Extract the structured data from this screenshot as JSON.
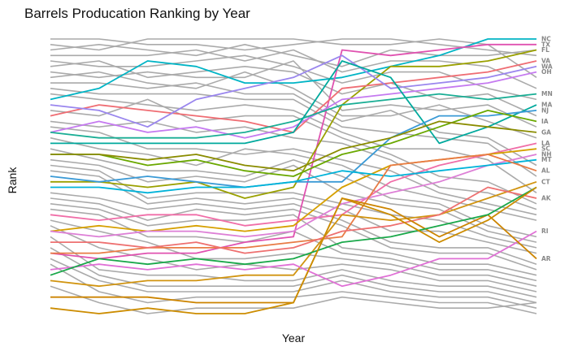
{
  "chart_data": {
    "type": "line",
    "title": "Barrels Producation Ranking by Year",
    "xlabel": "Year",
    "ylabel": "Rank",
    "x": [
      1,
      2,
      3,
      4,
      5,
      6,
      7,
      8,
      9,
      10,
      11
    ],
    "ylim": [
      1,
      51
    ],
    "y_reversed": true,
    "grid": false,
    "legend": "none",
    "background_series_color": "#aaaaaa",
    "highlighted": [
      {
        "label": "NC",
        "color": "#00b4c5",
        "ranks": [
          12,
          10,
          5,
          6,
          9,
          9,
          8,
          6,
          4,
          1,
          1
        ]
      },
      {
        "label": "TX",
        "color": "#e052b0",
        "ranks": [
          40,
          41,
          40,
          40,
          38,
          37,
          3,
          4,
          3,
          2,
          2
        ]
      },
      {
        "label": "FL",
        "color": "#9aa000",
        "ranks": [
          27,
          27,
          28,
          27,
          30,
          28,
          13,
          6,
          6,
          5,
          3
        ]
      },
      {
        "label": "VA",
        "color": "#ef6d73",
        "ranks": [
          15,
          13,
          14,
          15,
          16,
          18,
          10,
          9,
          8,
          7,
          5
        ]
      },
      {
        "label": "WA",
        "color": "#9a86ee",
        "ranks": [
          13,
          14,
          17,
          12,
          10,
          8,
          4,
          10,
          9,
          8,
          6
        ]
      },
      {
        "label": "OH",
        "color": "#c57af0",
        "ranks": [
          18,
          16,
          18,
          17,
          19,
          17,
          12,
          11,
          10,
          9,
          7
        ]
      },
      {
        "label": "MN",
        "color": "#1aae95",
        "ranks": [
          18,
          19,
          19,
          19,
          18,
          16,
          13,
          12,
          11,
          12,
          11
        ]
      },
      {
        "label": "MA",
        "color": "#00a99d",
        "ranks": [
          20,
          20,
          20,
          20,
          20,
          18,
          5,
          8,
          20,
          17,
          13
        ]
      },
      {
        "label": "NJ",
        "color": "#3a9ad6",
        "ranks": [
          26,
          27,
          26,
          27,
          28,
          27,
          27,
          19,
          15,
          15,
          14
        ]
      },
      {
        "label": "IA",
        "color": "#6aa800",
        "ranks": [
          22,
          22,
          24,
          23,
          25,
          26,
          22,
          20,
          17,
          14,
          16
        ]
      },
      {
        "label": "GA",
        "color": "#8a8c00",
        "ranks": [
          22,
          22,
          23,
          22,
          24,
          25,
          21,
          19,
          16,
          17,
          18
        ]
      },
      {
        "label": "LA",
        "color": "#f06ea8",
        "ranks": [
          33,
          34,
          33,
          33,
          35,
          34,
          33,
          27,
          24,
          22,
          20
        ]
      },
      {
        "label": "SC",
        "color": "#d6a000",
        "ranks": [
          36,
          35,
          36,
          35,
          36,
          35,
          28,
          24,
          23,
          22,
          21
        ]
      },
      {
        "label": "NH",
        "color": "#dd7fd6",
        "ranks": [
          36,
          37,
          36,
          36,
          37,
          36,
          31,
          29,
          27,
          24,
          22
        ]
      },
      {
        "label": "MT",
        "color": "#00b3d9",
        "ranks": [
          28,
          28,
          29,
          28,
          28,
          27,
          25,
          26,
          25,
          24,
          23
        ]
      },
      {
        "label": "AL",
        "color": "#e87b45",
        "ranks": [
          40,
          40,
          39,
          39,
          39,
          38,
          37,
          24,
          23,
          22,
          25
        ]
      },
      {
        "label": "CT",
        "color": "#d19410",
        "ranks": [
          45,
          46,
          45,
          45,
          44,
          44,
          33,
          34,
          33,
          30,
          27
        ]
      },
      {
        "label": "AK",
        "color": "#ee7070",
        "ranks": [
          38,
          38,
          39,
          38,
          40,
          39,
          36,
          35,
          33,
          28,
          30
        ]
      },
      {
        "label": "RI",
        "color": "#e070d6",
        "ranks": [
          43,
          42,
          43,
          42,
          43,
          42,
          46,
          44,
          41,
          41,
          36
        ]
      },
      {
        "label": "AR",
        "color": "#cc8400",
        "ranks": [
          48,
          48,
          48,
          49,
          49,
          49,
          30,
          32,
          37,
          33,
          41
        ]
      },
      {
        "label": "",
        "color": "#1aa84a",
        "ranks": [
          44,
          41,
          42,
          41,
          42,
          41,
          38,
          37,
          35,
          33,
          28
        ]
      },
      {
        "label": "",
        "color": "#cc8c00",
        "ranks": [
          50,
          51,
          50,
          51,
          51,
          49,
          30,
          33,
          38,
          34,
          28
        ]
      }
    ],
    "background": [
      [
        1,
        1,
        2,
        2,
        3,
        2,
        1,
        1,
        2,
        3,
        4
      ],
      [
        2,
        3,
        1,
        1,
        1,
        1,
        2,
        2,
        1,
        2,
        8
      ],
      [
        3,
        2,
        3,
        4,
        2,
        4,
        6,
        3,
        4,
        4,
        3
      ],
      [
        4,
        4,
        4,
        3,
        5,
        3,
        7,
        5,
        5,
        6,
        10
      ],
      [
        5,
        6,
        6,
        5,
        4,
        6,
        9,
        7,
        7,
        10,
        12
      ],
      [
        6,
        5,
        8,
        7,
        6,
        7,
        11,
        9,
        12,
        11,
        15
      ],
      [
        7,
        8,
        7,
        8,
        8,
        5,
        14,
        13,
        14,
        13,
        17
      ],
      [
        8,
        7,
        9,
        10,
        7,
        10,
        15,
        15,
        13,
        16,
        19
      ],
      [
        9,
        9,
        10,
        9,
        11,
        11,
        16,
        14,
        18,
        19,
        24
      ],
      [
        10,
        11,
        11,
        11,
        12,
        12,
        17,
        18,
        19,
        20,
        26
      ],
      [
        11,
        12,
        13,
        14,
        13,
        14,
        18,
        21,
        21,
        23,
        29
      ],
      [
        14,
        15,
        12,
        16,
        15,
        15,
        19,
        22,
        26,
        27,
        31
      ],
      [
        16,
        17,
        16,
        18,
        17,
        19,
        20,
        23,
        28,
        29,
        32
      ],
      [
        17,
        18,
        21,
        21,
        22,
        21,
        23,
        25,
        29,
        31,
        33
      ],
      [
        19,
        21,
        22,
        24,
        21,
        22,
        24,
        28,
        30,
        32,
        34
      ],
      [
        21,
        23,
        25,
        25,
        26,
        23,
        26,
        30,
        31,
        35,
        37
      ],
      [
        23,
        24,
        27,
        26,
        27,
        24,
        29,
        31,
        32,
        36,
        38
      ],
      [
        24,
        25,
        30,
        29,
        29,
        29,
        31,
        33,
        34,
        37,
        39
      ],
      [
        25,
        26,
        31,
        30,
        31,
        30,
        32,
        36,
        36,
        38,
        40
      ],
      [
        29,
        30,
        32,
        31,
        32,
        31,
        34,
        38,
        39,
        39,
        42
      ],
      [
        30,
        31,
        34,
        32,
        33,
        32,
        35,
        39,
        40,
        40,
        43
      ],
      [
        31,
        32,
        35,
        34,
        34,
        33,
        39,
        40,
        42,
        42,
        44
      ],
      [
        32,
        33,
        37,
        37,
        38,
        36,
        40,
        41,
        43,
        43,
        45
      ],
      [
        34,
        36,
        38,
        41,
        41,
        40,
        41,
        42,
        44,
        44,
        46
      ],
      [
        35,
        39,
        41,
        43,
        42,
        43,
        42,
        43,
        45,
        45,
        47
      ],
      [
        37,
        43,
        44,
        44,
        45,
        45,
        43,
        45,
        46,
        46,
        48
      ],
      [
        39,
        44,
        46,
        46,
        46,
        46,
        44,
        46,
        47,
        47,
        49
      ],
      [
        41,
        45,
        47,
        47,
        47,
        47,
        45,
        47,
        48,
        48,
        50
      ],
      [
        42,
        47,
        49,
        48,
        48,
        48,
        47,
        48,
        49,
        49,
        51
      ],
      [
        46,
        49,
        51,
        50,
        50,
        50,
        48,
        49,
        50,
        50,
        49
      ]
    ]
  }
}
